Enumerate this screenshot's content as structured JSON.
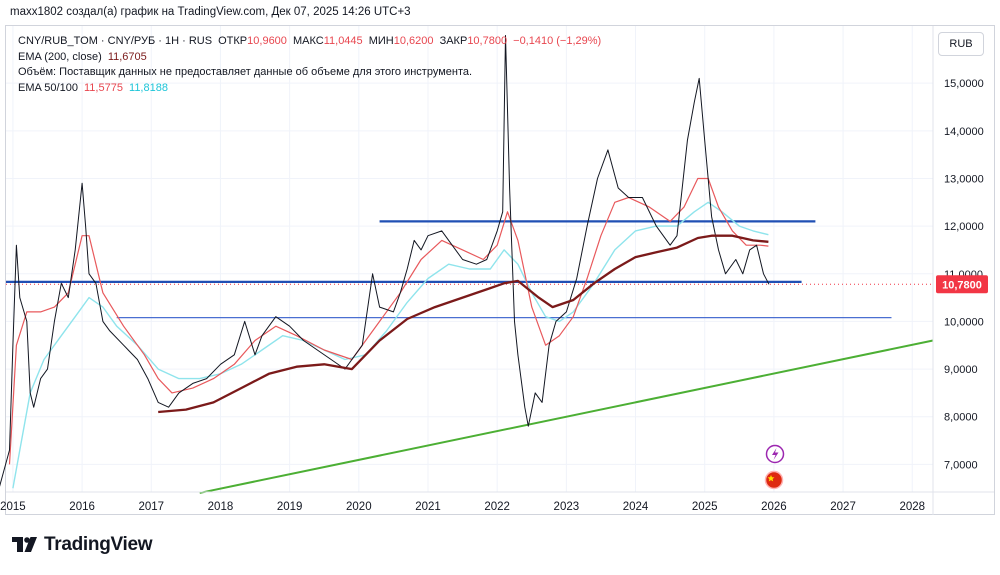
{
  "header": {
    "author_line": "maxx1802 создал(а) график на TradingView.com, Дек 07, 2025 14:26 UTC+3"
  },
  "legend": {
    "symbol": "CNY/RUB_TOM · CNY/РУБ · 1Н · RUS",
    "open_label": "ОТКР",
    "open": "10,9600",
    "high_label": "МАКС",
    "high": "11,0445",
    "low_label": "МИН",
    "low": "10,6200",
    "close_label": "ЗАКР",
    "close": "10,7800",
    "change": "−0,1410 (−1,29%)",
    "ema200_label": "EMA (200, close)",
    "ema200": "11,6705",
    "volume_note": "Объём: Поставщик данных не предоставляет данные об объеме для этого инструмента.",
    "ema_pair_label": "EMA 50/100",
    "ema50": "11,5775",
    "ema100": "11,8188"
  },
  "currency": "RUB",
  "price_label": {
    "value": "10,7800",
    "price": 10.78
  },
  "colors": {
    "price": "#131722",
    "ema50": "#e8595c",
    "ema100": "#8fe4ec",
    "ema200": "#7b1a1a",
    "level": "#1f4fb4",
    "support": "#4caf34",
    "tag": "#f23645"
  },
  "chart_data": {
    "type": "line",
    "title": "CNY/RUB_TOM · 1Н",
    "x_ticks": [
      "2015",
      "2016",
      "2017",
      "2018",
      "2019",
      "2020",
      "2021",
      "2022",
      "2023",
      "2024",
      "2025",
      "2026",
      "2027",
      "2028"
    ],
    "x_tick_values": [
      2015,
      2016,
      2017,
      2018,
      2019,
      2020,
      2021,
      2022,
      2023,
      2024,
      2025,
      2026,
      2027,
      2028
    ],
    "y_ticks": [
      "7,0000",
      "8,0000",
      "9,0000",
      "10,0000",
      "11,0000",
      "12,0000",
      "13,0000",
      "14,0000",
      "15,0000"
    ],
    "y_tick_values": [
      7,
      8,
      9,
      10,
      11,
      12,
      13,
      14,
      15
    ],
    "xlim": [
      2014.9,
      2028.3
    ],
    "ylim": [
      6.42,
      16.2
    ],
    "series": [
      {
        "name": "Price",
        "points": [
          [
            2014.8,
            6.5
          ],
          [
            2014.95,
            7.3
          ],
          [
            2015.0,
            9.5
          ],
          [
            2015.05,
            11.6
          ],
          [
            2015.1,
            10.5
          ],
          [
            2015.2,
            10.0
          ],
          [
            2015.25,
            8.5
          ],
          [
            2015.3,
            8.2
          ],
          [
            2015.4,
            8.8
          ],
          [
            2015.5,
            9.0
          ],
          [
            2015.6,
            10.0
          ],
          [
            2015.7,
            10.8
          ],
          [
            2015.8,
            10.5
          ],
          [
            2015.9,
            11.5
          ],
          [
            2016.0,
            12.9
          ],
          [
            2016.05,
            12.0
          ],
          [
            2016.1,
            11.0
          ],
          [
            2016.2,
            10.8
          ],
          [
            2016.3,
            10.0
          ],
          [
            2016.4,
            9.8
          ],
          [
            2016.6,
            9.5
          ],
          [
            2016.8,
            9.2
          ],
          [
            2016.95,
            8.8
          ],
          [
            2017.1,
            8.3
          ],
          [
            2017.25,
            8.2
          ],
          [
            2017.4,
            8.5
          ],
          [
            2017.6,
            8.7
          ],
          [
            2017.8,
            8.8
          ],
          [
            2018.0,
            9.1
          ],
          [
            2018.2,
            9.3
          ],
          [
            2018.35,
            10.0
          ],
          [
            2018.5,
            9.3
          ],
          [
            2018.6,
            9.7
          ],
          [
            2018.8,
            10.1
          ],
          [
            2019.0,
            9.9
          ],
          [
            2019.2,
            9.6
          ],
          [
            2019.4,
            9.4
          ],
          [
            2019.6,
            9.2
          ],
          [
            2019.8,
            9.0
          ],
          [
            2019.9,
            9.2
          ],
          [
            2020.05,
            9.5
          ],
          [
            2020.2,
            11.0
          ],
          [
            2020.3,
            10.3
          ],
          [
            2020.5,
            10.2
          ],
          [
            2020.6,
            10.6
          ],
          [
            2020.7,
            11.1
          ],
          [
            2020.8,
            11.7
          ],
          [
            2020.9,
            11.5
          ],
          [
            2021.0,
            11.8
          ],
          [
            2021.2,
            11.9
          ],
          [
            2021.3,
            11.7
          ],
          [
            2021.5,
            11.3
          ],
          [
            2021.7,
            11.2
          ],
          [
            2021.85,
            11.3
          ],
          [
            2022.0,
            11.9
          ],
          [
            2022.08,
            12.3
          ],
          [
            2022.12,
            16.0
          ],
          [
            2022.18,
            12.8
          ],
          [
            2022.25,
            10.0
          ],
          [
            2022.3,
            9.3
          ],
          [
            2022.4,
            8.2
          ],
          [
            2022.45,
            7.8
          ],
          [
            2022.55,
            8.5
          ],
          [
            2022.65,
            8.3
          ],
          [
            2022.75,
            9.5
          ],
          [
            2022.85,
            10.0
          ],
          [
            2023.0,
            10.2
          ],
          [
            2023.15,
            10.9
          ],
          [
            2023.3,
            12.0
          ],
          [
            2023.45,
            13.0
          ],
          [
            2023.6,
            13.6
          ],
          [
            2023.75,
            12.8
          ],
          [
            2023.9,
            12.6
          ],
          [
            2024.1,
            12.6
          ],
          [
            2024.3,
            12.0
          ],
          [
            2024.5,
            11.6
          ],
          [
            2024.6,
            11.8
          ],
          [
            2024.75,
            13.8
          ],
          [
            2024.85,
            14.6
          ],
          [
            2024.92,
            15.1
          ],
          [
            2025.0,
            13.8
          ],
          [
            2025.1,
            12.2
          ],
          [
            2025.2,
            11.5
          ],
          [
            2025.3,
            11.0
          ],
          [
            2025.45,
            11.3
          ],
          [
            2025.55,
            11.0
          ],
          [
            2025.65,
            11.5
          ],
          [
            2025.75,
            11.6
          ],
          [
            2025.85,
            11.0
          ],
          [
            2025.93,
            10.78
          ]
        ]
      },
      {
        "name": "EMA 50",
        "points": [
          [
            2014.95,
            7.0
          ],
          [
            2015.05,
            9.5
          ],
          [
            2015.2,
            10.2
          ],
          [
            2015.4,
            10.2
          ],
          [
            2015.6,
            10.3
          ],
          [
            2015.8,
            10.6
          ],
          [
            2016.0,
            11.8
          ],
          [
            2016.1,
            11.8
          ],
          [
            2016.3,
            10.6
          ],
          [
            2016.6,
            9.9
          ],
          [
            2016.9,
            9.3
          ],
          [
            2017.1,
            8.8
          ],
          [
            2017.3,
            8.5
          ],
          [
            2017.6,
            8.6
          ],
          [
            2017.9,
            8.8
          ],
          [
            2018.2,
            9.1
          ],
          [
            2018.5,
            9.6
          ],
          [
            2018.8,
            9.9
          ],
          [
            2019.1,
            9.7
          ],
          [
            2019.5,
            9.4
          ],
          [
            2019.9,
            9.2
          ],
          [
            2020.3,
            10.0
          ],
          [
            2020.6,
            10.6
          ],
          [
            2020.9,
            11.3
          ],
          [
            2021.2,
            11.7
          ],
          [
            2021.5,
            11.5
          ],
          [
            2021.8,
            11.3
          ],
          [
            2022.0,
            11.6
          ],
          [
            2022.15,
            12.3
          ],
          [
            2022.3,
            11.7
          ],
          [
            2022.5,
            10.3
          ],
          [
            2022.7,
            9.5
          ],
          [
            2022.9,
            9.7
          ],
          [
            2023.1,
            10.1
          ],
          [
            2023.3,
            10.9
          ],
          [
            2023.5,
            11.8
          ],
          [
            2023.7,
            12.5
          ],
          [
            2023.9,
            12.6
          ],
          [
            2024.2,
            12.4
          ],
          [
            2024.5,
            12.1
          ],
          [
            2024.7,
            12.4
          ],
          [
            2024.9,
            13.0
          ],
          [
            2025.05,
            13.0
          ],
          [
            2025.2,
            12.4
          ],
          [
            2025.4,
            11.9
          ],
          [
            2025.6,
            11.6
          ],
          [
            2025.8,
            11.6
          ],
          [
            2025.92,
            11.58
          ]
        ]
      },
      {
        "name": "EMA 100",
        "points": [
          [
            2015.0,
            6.5
          ],
          [
            2015.1,
            7.3
          ],
          [
            2015.25,
            8.5
          ],
          [
            2015.45,
            9.2
          ],
          [
            2015.7,
            9.7
          ],
          [
            2015.9,
            10.1
          ],
          [
            2016.1,
            10.5
          ],
          [
            2016.3,
            10.3
          ],
          [
            2016.5,
            9.9
          ],
          [
            2016.8,
            9.5
          ],
          [
            2017.1,
            9.0
          ],
          [
            2017.4,
            8.8
          ],
          [
            2017.7,
            8.8
          ],
          [
            2018.0,
            8.9
          ],
          [
            2018.3,
            9.1
          ],
          [
            2018.6,
            9.4
          ],
          [
            2018.9,
            9.7
          ],
          [
            2019.2,
            9.6
          ],
          [
            2019.5,
            9.4
          ],
          [
            2019.8,
            9.2
          ],
          [
            2020.1,
            9.3
          ],
          [
            2020.4,
            9.8
          ],
          [
            2020.7,
            10.4
          ],
          [
            2021.0,
            10.9
          ],
          [
            2021.3,
            11.2
          ],
          [
            2021.6,
            11.1
          ],
          [
            2021.9,
            11.1
          ],
          [
            2022.1,
            11.5
          ],
          [
            2022.3,
            11.2
          ],
          [
            2022.5,
            10.6
          ],
          [
            2022.7,
            10.1
          ],
          [
            2022.9,
            10.0
          ],
          [
            2023.1,
            10.2
          ],
          [
            2023.4,
            10.8
          ],
          [
            2023.7,
            11.5
          ],
          [
            2024.0,
            11.9
          ],
          [
            2024.3,
            12.0
          ],
          [
            2024.6,
            12.0
          ],
          [
            2024.85,
            12.3
          ],
          [
            2025.05,
            12.5
          ],
          [
            2025.25,
            12.3
          ],
          [
            2025.5,
            12.0
          ],
          [
            2025.7,
            11.9
          ],
          [
            2025.92,
            11.82
          ]
        ]
      },
      {
        "name": "EMA 200",
        "points": [
          [
            2017.1,
            8.1
          ],
          [
            2017.5,
            8.15
          ],
          [
            2017.9,
            8.3
          ],
          [
            2018.3,
            8.6
          ],
          [
            2018.7,
            8.9
          ],
          [
            2019.1,
            9.05
          ],
          [
            2019.5,
            9.1
          ],
          [
            2019.9,
            9.0
          ],
          [
            2020.3,
            9.6
          ],
          [
            2020.7,
            10.05
          ],
          [
            2021.1,
            10.3
          ],
          [
            2021.5,
            10.5
          ],
          [
            2021.9,
            10.7
          ],
          [
            2022.1,
            10.8
          ],
          [
            2022.3,
            10.85
          ],
          [
            2022.6,
            10.5
          ],
          [
            2022.8,
            10.3
          ],
          [
            2023.1,
            10.45
          ],
          [
            2023.4,
            10.8
          ],
          [
            2023.7,
            11.1
          ],
          [
            2024.0,
            11.35
          ],
          [
            2024.3,
            11.45
          ],
          [
            2024.6,
            11.55
          ],
          [
            2024.9,
            11.75
          ],
          [
            2025.1,
            11.8
          ],
          [
            2025.4,
            11.8
          ],
          [
            2025.7,
            11.7
          ],
          [
            2025.92,
            11.67
          ]
        ]
      }
    ],
    "levels": [
      {
        "name": "resistance",
        "y": 12.1,
        "x_start": 2020.3,
        "x_end": 2026.6
      },
      {
        "name": "horizontal-support",
        "y": 10.83,
        "x_start": 2014.9,
        "x_end": 2026.4
      },
      {
        "name": "lower-level",
        "y": 10.08,
        "x_start": 2016.5,
        "x_end": 2027.7
      }
    ],
    "trendline": {
      "name": "ascending-support",
      "points": [
        [
          2017.7,
          6.4
        ],
        [
          2028.3,
          9.6
        ]
      ]
    },
    "current_price": 10.78,
    "legend": [
      "CNY/RUB_TOM",
      "EMA (200, close)",
      "EMA 50/100"
    ]
  },
  "footer": {
    "brand": "TradingView"
  }
}
